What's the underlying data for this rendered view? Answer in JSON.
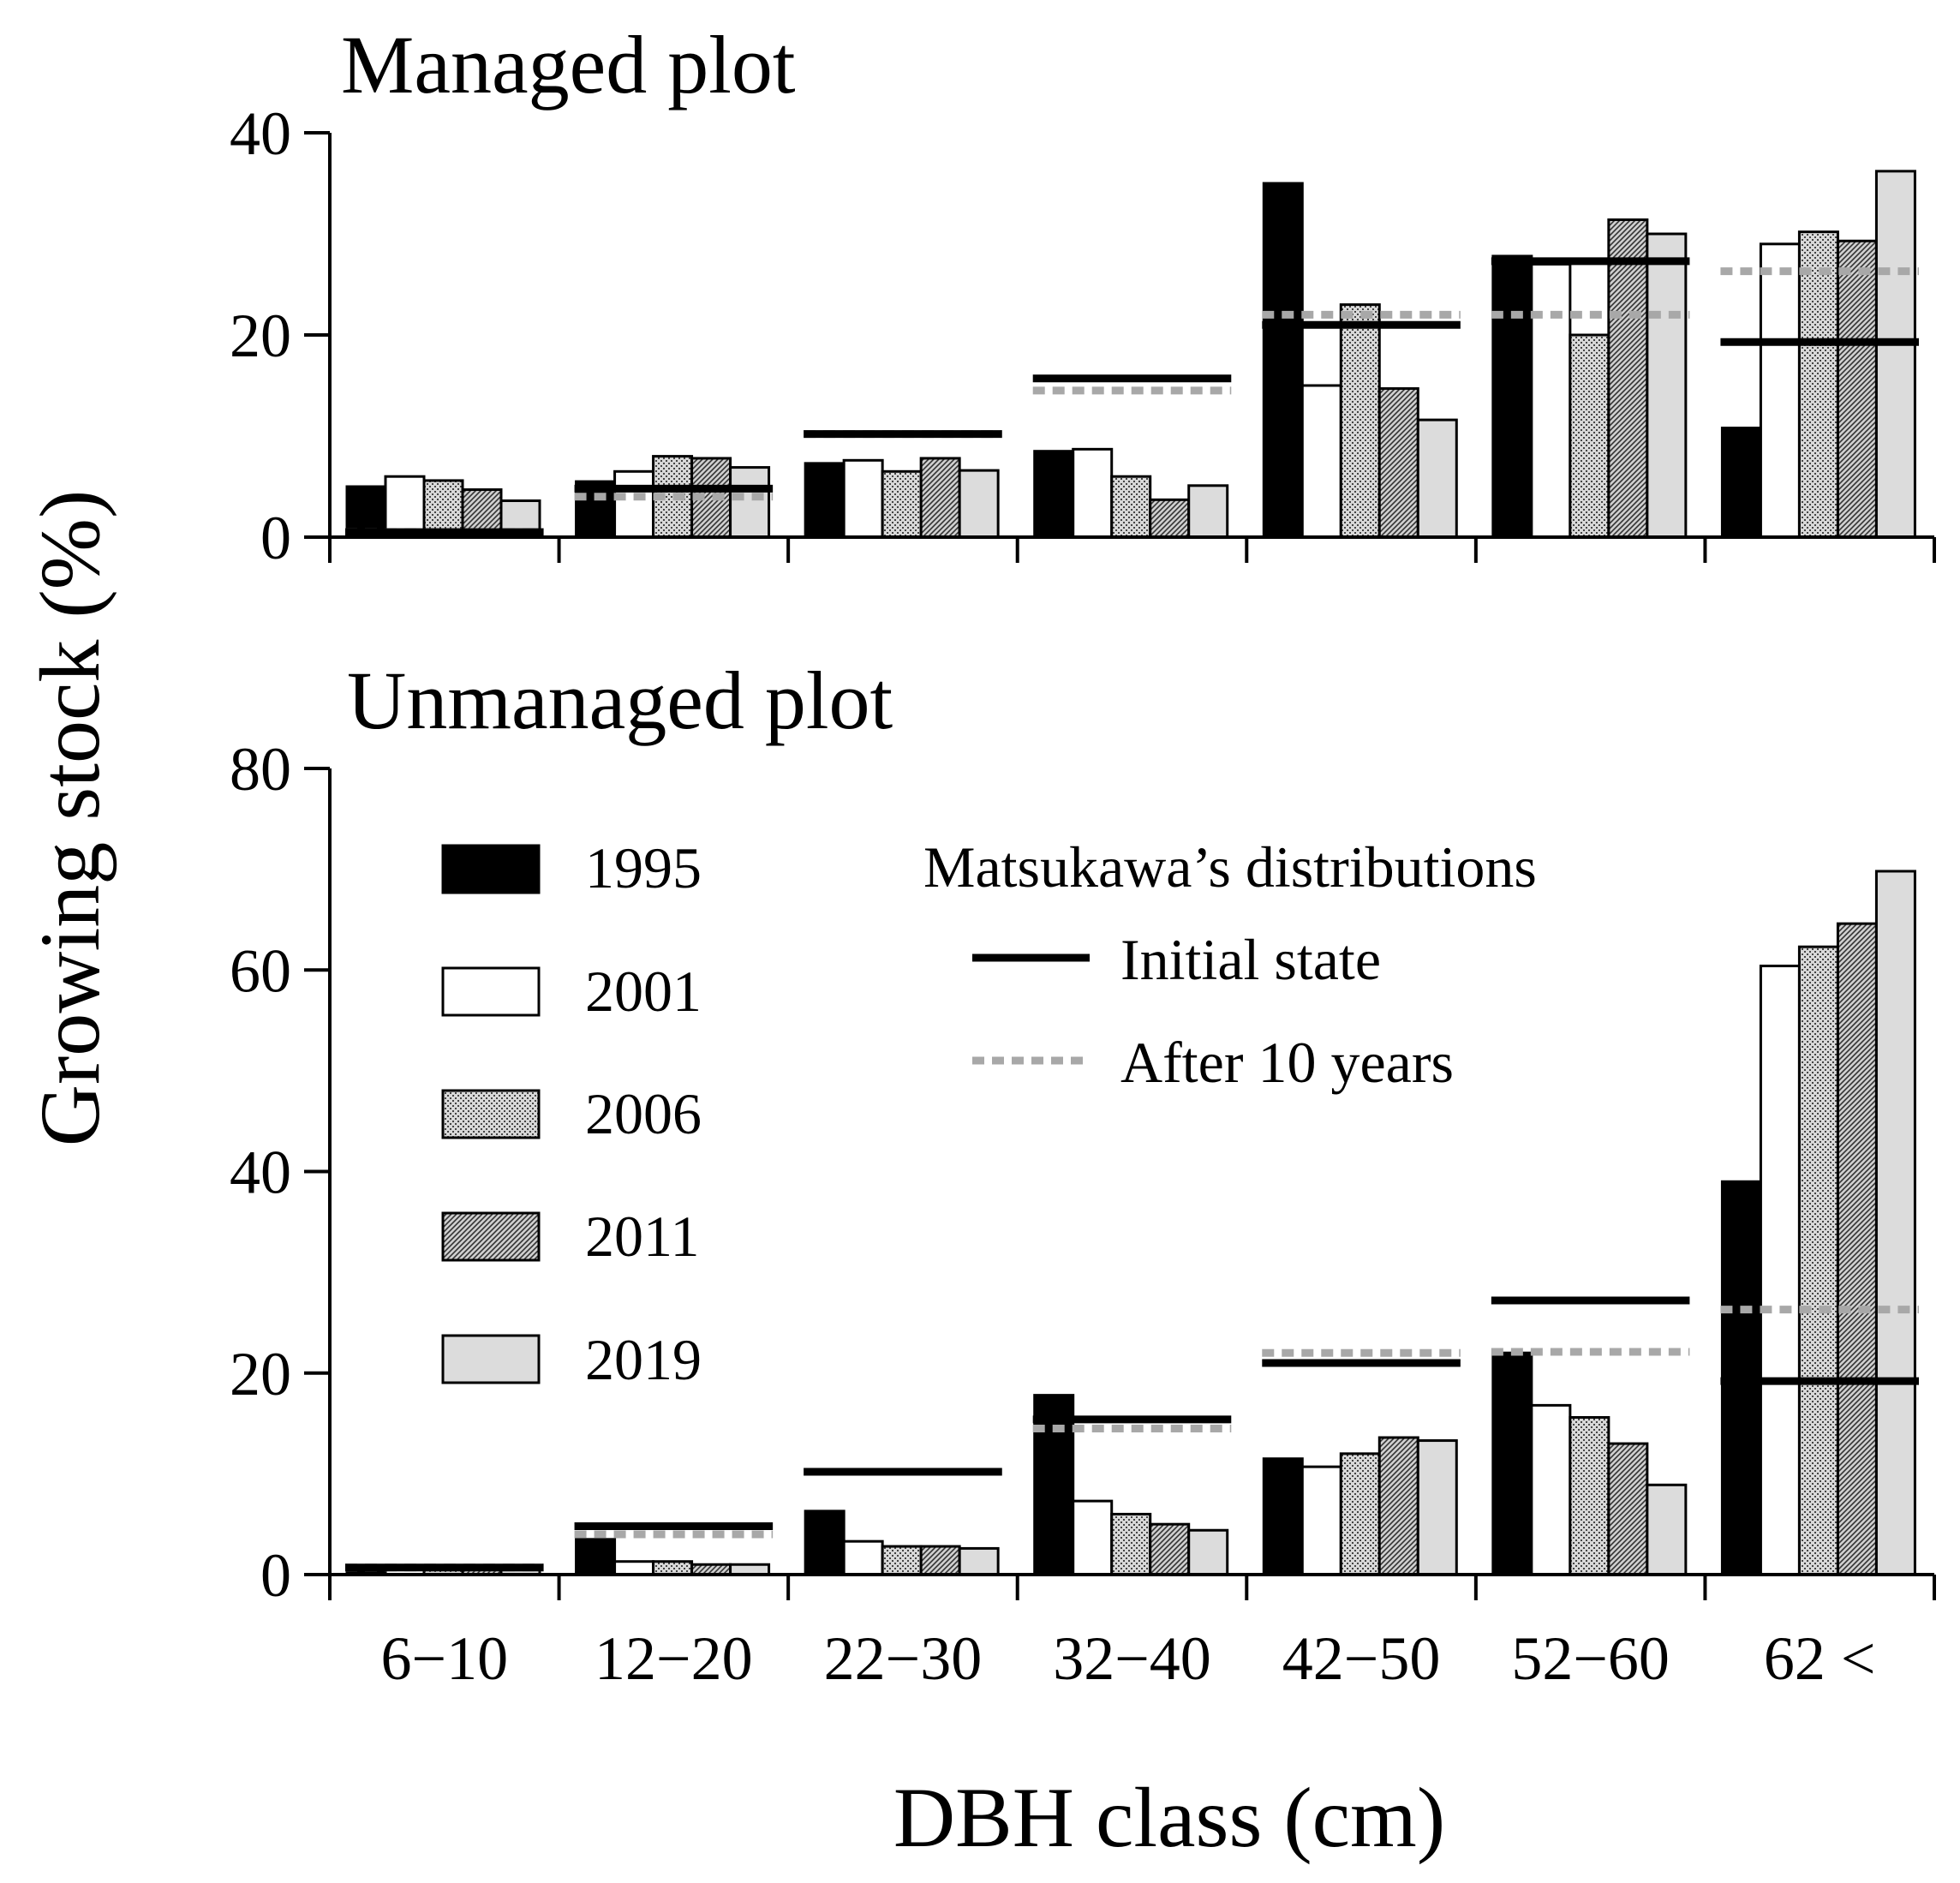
{
  "chart_data": {
    "type": "bar",
    "ylabel": "Growing stock (%)",
    "xlabel": "DBH class (cm)",
    "categories": [
      "6−10",
      "12−20",
      "22−30",
      "32−40",
      "42−50",
      "52−60",
      "62 <"
    ],
    "legend": {
      "years": [
        "1995",
        "2001",
        "2006",
        "2011",
        "2019"
      ],
      "distributions_title": "Matsukawa’s distributions",
      "initial_label": "Initial state",
      "after_label": "After 10 years"
    },
    "colors": {
      "1995": "#000000",
      "2001": "#ffffff",
      "2006": "#b5b5b5",
      "2011": "#9a9a9a",
      "2019": "#dcdcdc",
      "initial_state": "#000000",
      "after_10_years": "#a8a8a8"
    },
    "panels": [
      {
        "title": "Managed plot",
        "ylim": [
          0,
          40
        ],
        "yticks": [
          0,
          20,
          40
        ],
        "series": [
          {
            "name": "1995",
            "values": [
              5.0,
              5.5,
              7.3,
              8.5,
              35.0,
              27.8,
              10.8
            ]
          },
          {
            "name": "2001",
            "values": [
              6.0,
              6.5,
              7.6,
              8.7,
              15.0,
              27.0,
              29.0
            ]
          },
          {
            "name": "2006",
            "values": [
              5.6,
              8.0,
              6.5,
              6.0,
              23.0,
              20.0,
              30.2
            ]
          },
          {
            "name": "2011",
            "values": [
              4.7,
              7.8,
              7.8,
              3.7,
              14.7,
              31.4,
              29.3
            ]
          },
          {
            "name": "2019",
            "values": [
              3.6,
              6.9,
              6.6,
              5.1,
              11.6,
              30.0,
              36.2
            ]
          }
        ],
        "initial_state": [
          0.5,
          4.8,
          10.2,
          15.7,
          21.0,
          27.3,
          19.3
        ],
        "after_10_years": [
          0.5,
          4.0,
          10.2,
          14.5,
          22.0,
          22.0,
          26.3
        ]
      },
      {
        "title": "Unmanaged plot",
        "ylim": [
          0,
          80
        ],
        "yticks": [
          0,
          20,
          40,
          60,
          80
        ],
        "series": [
          {
            "name": "1995",
            "values": [
              0.5,
              3.5,
              6.3,
              17.8,
              11.5,
              22.0,
              39.0
            ]
          },
          {
            "name": "2001",
            "values": [
              0.5,
              1.3,
              3.3,
              7.3,
              10.7,
              16.8,
              60.4
            ]
          },
          {
            "name": "2006",
            "values": [
              0.5,
              1.3,
              2.8,
              6.0,
              12.0,
              15.6,
              62.3
            ]
          },
          {
            "name": "2011",
            "values": [
              0.5,
              1.0,
              2.8,
              5.0,
              13.6,
              13.0,
              64.6
            ]
          },
          {
            "name": "2019",
            "values": [
              0.5,
              1.0,
              2.6,
              4.4,
              13.3,
              8.9,
              69.8
            ]
          }
        ],
        "initial_state": [
          0.7,
          4.8,
          10.2,
          15.4,
          21.0,
          27.2,
          19.2
        ],
        "after_10_years": [
          0.7,
          4.0,
          10.2,
          14.5,
          22.0,
          22.1,
          26.3
        ]
      }
    ]
  }
}
